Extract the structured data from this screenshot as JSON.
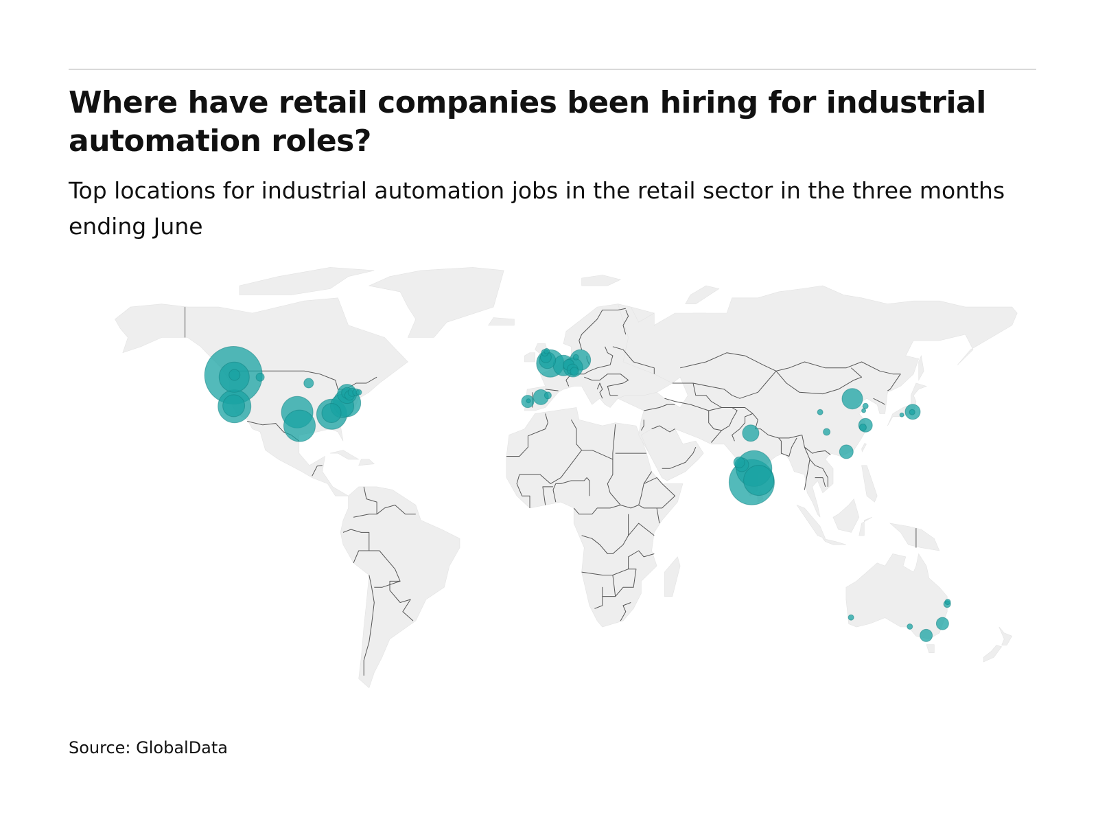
{
  "header": {
    "title": "Where have retail companies been hiring for industrial automation roles?",
    "subtitle": "Top locations for industrial automation jobs in the retail sector in the three months ending June"
  },
  "footer": {
    "source": "Source: GlobalData"
  },
  "colors": {
    "land": "#eeeeee",
    "border": "#555555",
    "bubble": "#1aa3a3",
    "bubble_stroke": "#0f7f7f"
  },
  "chart_data": {
    "type": "bubble-map",
    "projection": "equirectangular",
    "lon_range": [
      -170,
      190
    ],
    "lat_range": [
      -58,
      84
    ],
    "bubbles": [
      {
        "lon": -122.3,
        "lat": 47.6,
        "r": 42
      },
      {
        "lon": -122.0,
        "lat": 47.0,
        "r": 22
      },
      {
        "lon": -121.9,
        "lat": 47.7,
        "r": 8
      },
      {
        "lon": -112.0,
        "lat": 47.0,
        "r": 6
      },
      {
        "lon": -93.3,
        "lat": 45.0,
        "r": 7
      },
      {
        "lon": -121.9,
        "lat": 37.4,
        "r": 24
      },
      {
        "lon": -122.2,
        "lat": 37.6,
        "r": 16
      },
      {
        "lon": -97.7,
        "lat": 35.5,
        "r": 23
      },
      {
        "lon": -96.8,
        "lat": 31.0,
        "r": 23
      },
      {
        "lon": -84.4,
        "lat": 34.8,
        "r": 22
      },
      {
        "lon": -84.5,
        "lat": 35.2,
        "r": 14
      },
      {
        "lon": -80.4,
        "lat": 37.5,
        "r": 17
      },
      {
        "lon": -78.5,
        "lat": 38.5,
        "r": 20
      },
      {
        "lon": -78.5,
        "lat": 41.5,
        "r": 14
      },
      {
        "lon": -78.5,
        "lat": 41.8,
        "r": 8
      },
      {
        "lon": -77.5,
        "lat": 41.0,
        "r": 7
      },
      {
        "lon": -76.5,
        "lat": 42.0,
        "r": 6
      },
      {
        "lon": -75.0,
        "lat": 42.0,
        "r": 5
      },
      {
        "lon": -73.9,
        "lat": 42.0,
        "r": 4
      },
      {
        "lon": -0.1,
        "lat": 51.5,
        "r": 20
      },
      {
        "lon": -1.2,
        "lat": 52.5,
        "r": 12
      },
      {
        "lon": -1.8,
        "lat": 53.5,
        "r": 8
      },
      {
        "lon": -2.2,
        "lat": 55.0,
        "r": 5
      },
      {
        "lon": -1.5,
        "lat": 55.5,
        "r": 4
      },
      {
        "lon": 5.0,
        "lat": 50.8,
        "r": 15
      },
      {
        "lon": 7.0,
        "lat": 51.0,
        "r": 8
      },
      {
        "lon": 8.7,
        "lat": 50.2,
        "r": 14
      },
      {
        "lon": 8.5,
        "lat": 49.5,
        "r": 8
      },
      {
        "lon": 9.2,
        "lat": 48.9,
        "r": 6
      },
      {
        "lon": 11.5,
        "lat": 52.6,
        "r": 15
      },
      {
        "lon": 9.8,
        "lat": 53.5,
        "r": 4
      },
      {
        "lon": -3.7,
        "lat": 40.4,
        "r": 11
      },
      {
        "lon": -1.0,
        "lat": 41.0,
        "r": 5
      },
      {
        "lon": -8.8,
        "lat": 39.0,
        "r": 9
      },
      {
        "lon": -8.5,
        "lat": 39.2,
        "r": 3
      },
      {
        "lon": 77.2,
        "lat": 28.6,
        "r": 12
      },
      {
        "lon": 72.8,
        "lat": 19.0,
        "r": 8
      },
      {
        "lon": 73.8,
        "lat": 18.2,
        "r": 10
      },
      {
        "lon": 78.5,
        "lat": 17.0,
        "r": 26
      },
      {
        "lon": 80.3,
        "lat": 13.1,
        "r": 22
      },
      {
        "lon": 77.6,
        "lat": 12.5,
        "r": 33
      },
      {
        "lon": 116.4,
        "lat": 39.9,
        "r": 15
      },
      {
        "lon": 121.5,
        "lat": 37.5,
        "r": 4
      },
      {
        "lon": 120.8,
        "lat": 36.0,
        "r": 3
      },
      {
        "lon": 104.0,
        "lat": 35.5,
        "r": 4
      },
      {
        "lon": 106.5,
        "lat": 29.0,
        "r": 5
      },
      {
        "lon": 121.5,
        "lat": 31.2,
        "r": 10
      },
      {
        "lon": 120.5,
        "lat": 30.5,
        "r": 5
      },
      {
        "lon": 114.1,
        "lat": 22.5,
        "r": 10
      },
      {
        "lon": 139.7,
        "lat": 35.6,
        "r": 11
      },
      {
        "lon": 139.5,
        "lat": 35.5,
        "r": 4
      },
      {
        "lon": 135.5,
        "lat": 34.6,
        "r": 3
      },
      {
        "lon": 115.9,
        "lat": -31.9,
        "r": 4
      },
      {
        "lon": 138.6,
        "lat": -34.9,
        "r": 4
      },
      {
        "lon": 144.9,
        "lat": -37.8,
        "r": 9
      },
      {
        "lon": 151.2,
        "lat": -33.9,
        "r": 9
      },
      {
        "lon": 153.0,
        "lat": -27.5,
        "r": 5
      },
      {
        "lon": 153.2,
        "lat": -26.8,
        "r": 4
      }
    ]
  }
}
